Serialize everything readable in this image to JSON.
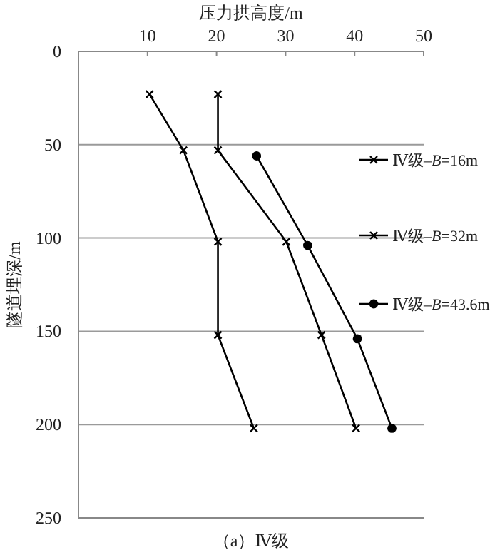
{
  "chart_data": {
    "type": "line",
    "xlabel": "压力拱高度/m",
    "ylabel": "隧道埋深/m",
    "annotations": [
      "（a）Ⅳ级"
    ],
    "xlim": [
      0,
      50
    ],
    "xticks": [
      10,
      20,
      30,
      40,
      50
    ],
    "ylim": [
      250,
      0
    ],
    "yticks": [
      0,
      50,
      100,
      150,
      200,
      250
    ],
    "grid": "y",
    "legend": "right",
    "line_style": "solid",
    "series": [
      {
        "name": "Ⅳ级–*B*=16m",
        "color": "#000000",
        "marker": "cross",
        "x": [
          10.3,
          15.2,
          20.2,
          20.2,
          25.4
        ],
        "values": [
          23,
          53,
          102,
          152,
          202
        ]
      },
      {
        "name": "Ⅳ级–*B*=32m",
        "color": "#000000",
        "marker": "cross",
        "x": [
          20.2,
          20.2,
          30.1,
          35.2,
          40.2
        ],
        "values": [
          23,
          53,
          102,
          152,
          202
        ]
      },
      {
        "name": "Ⅳ级–*B*=43.6m",
        "color": "#000000",
        "marker": "circle",
        "x": [
          25.8,
          33.2,
          40.4,
          45.4
        ],
        "values": [
          56,
          104,
          154,
          202
        ]
      }
    ]
  }
}
